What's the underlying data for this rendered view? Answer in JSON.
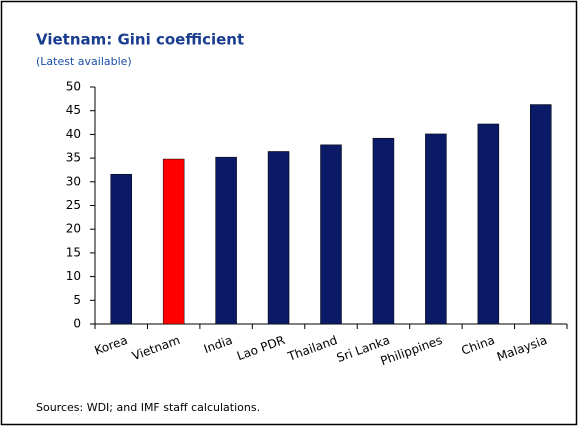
{
  "chart_data": {
    "type": "bar",
    "title": "Vietnam: Gini coefficient",
    "subtitle": "(Latest available)",
    "source": "Sources: WDI; and IMF staff calculations.",
    "categories": [
      "Korea",
      "Vietnam",
      "India",
      "Lao PDR",
      "Thailand",
      "Sri Lanka",
      "Philippines",
      "China",
      "Malaysia"
    ],
    "values": [
      31.6,
      34.8,
      35.2,
      36.4,
      37.8,
      39.2,
      40.1,
      42.2,
      46.3
    ],
    "colors": [
      "#0a1a66",
      "#ff0000",
      "#0a1a66",
      "#0a1a66",
      "#0a1a66",
      "#0a1a66",
      "#0a1a66",
      "#0a1a66",
      "#0a1a66"
    ],
    "ylim": [
      0,
      50
    ],
    "yticks": [
      0,
      5,
      10,
      15,
      20,
      25,
      30,
      35,
      40,
      45,
      50
    ],
    "grid": false
  }
}
